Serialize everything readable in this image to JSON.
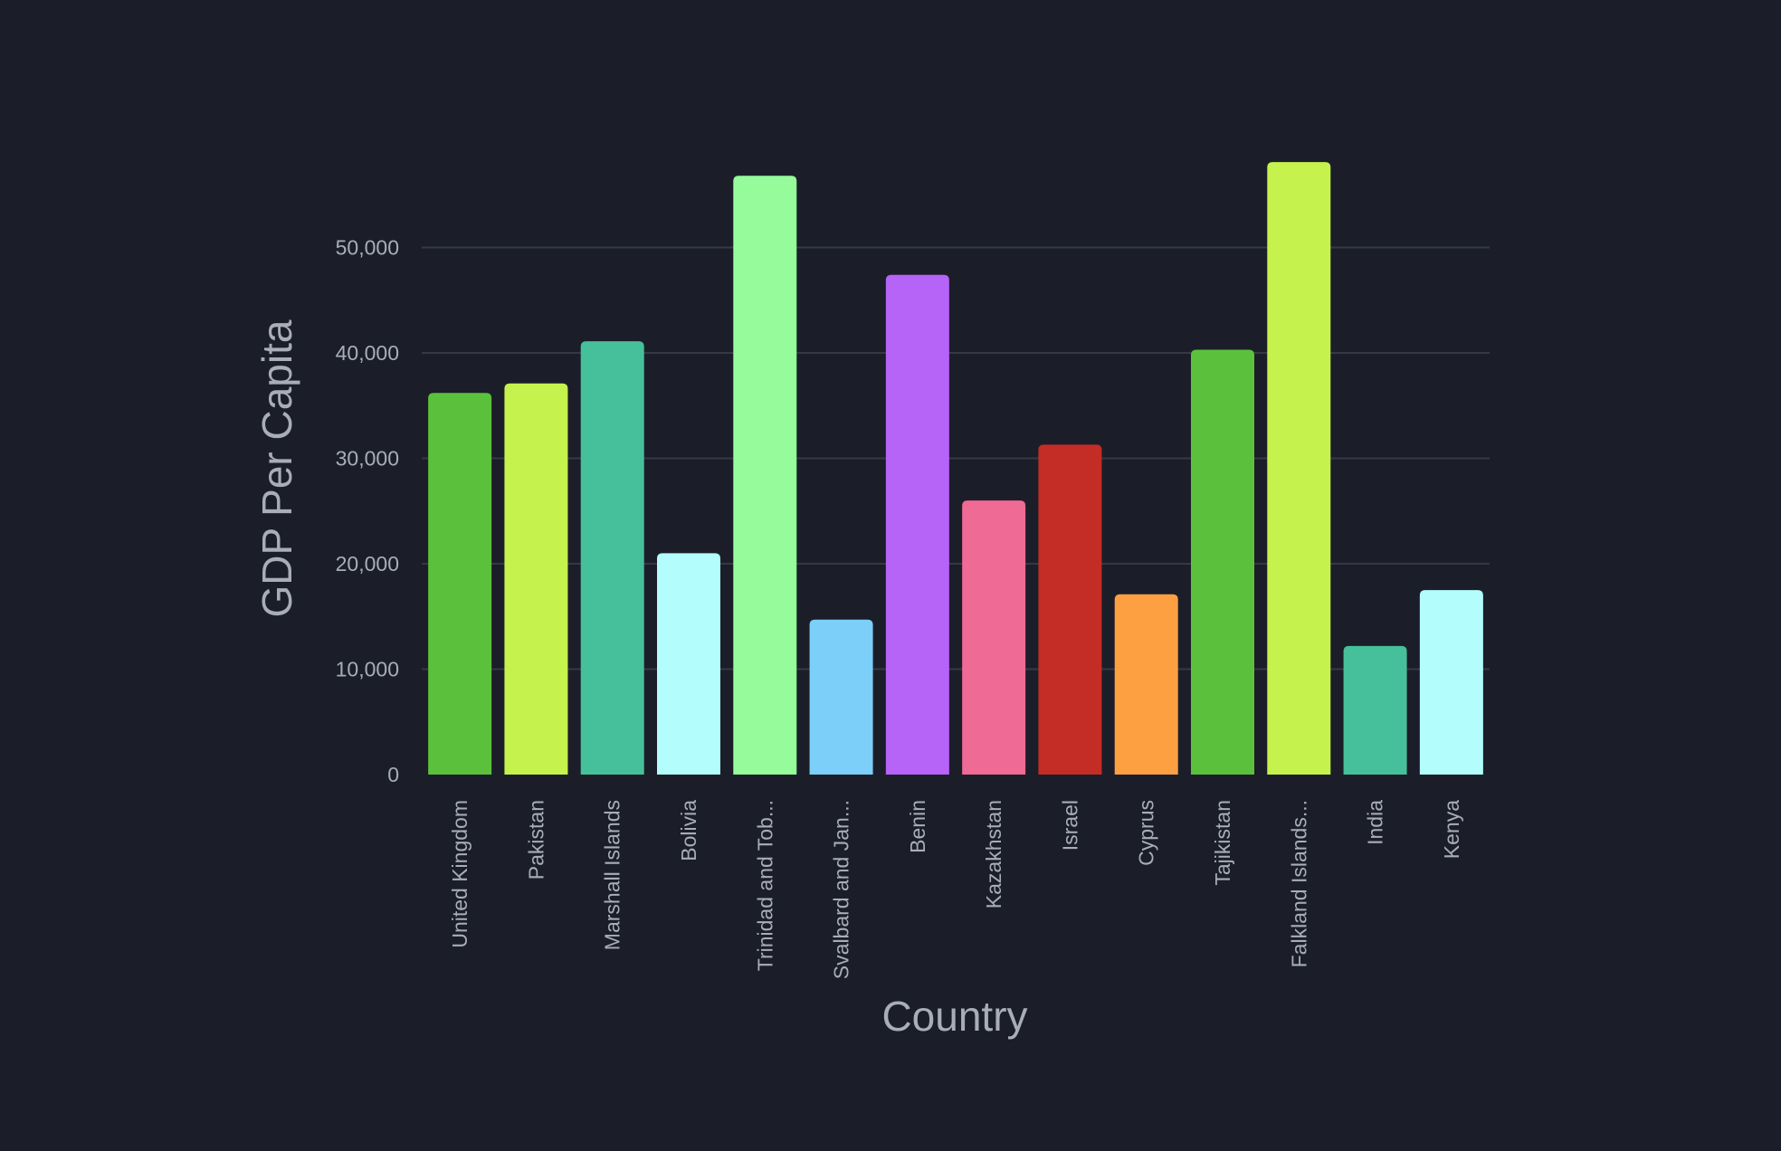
{
  "chart_data": {
    "type": "bar",
    "title": "",
    "xlabel": "Country",
    "ylabel": "GDP Per Capita",
    "categories": [
      "United Kingdom",
      "Pakistan",
      "Marshall Islands",
      "Bolivia",
      "Trinidad and Tob...",
      "Svalbard and Jan...",
      "Benin",
      "Kazakhstan",
      "Israel",
      "Cyprus",
      "Tajikistan",
      "Falkland Islands...",
      "India",
      "Kenya"
    ],
    "values": [
      36200,
      37100,
      41100,
      21000,
      56800,
      14700,
      47400,
      26000,
      31300,
      17100,
      40300,
      58100,
      12200,
      17500
    ],
    "colors": [
      "#5bc13c",
      "#c5f24d",
      "#45c09b",
      "#b3fdfc",
      "#95fb9b",
      "#7bcff9",
      "#b663f8",
      "#ef6a94",
      "#c42c26",
      "#fda041",
      "#5bc13c",
      "#c5f24d",
      "#45c09b",
      "#b3fdfc"
    ],
    "ylim": [
      0,
      60000
    ],
    "yticks": [
      0,
      10000,
      20000,
      30000,
      40000,
      50000
    ],
    "ytick_labels": [
      "0",
      "10,000",
      "20,000",
      "30,000",
      "40,000",
      "50,000"
    ],
    "grid": true,
    "background": "#1b1e28"
  }
}
